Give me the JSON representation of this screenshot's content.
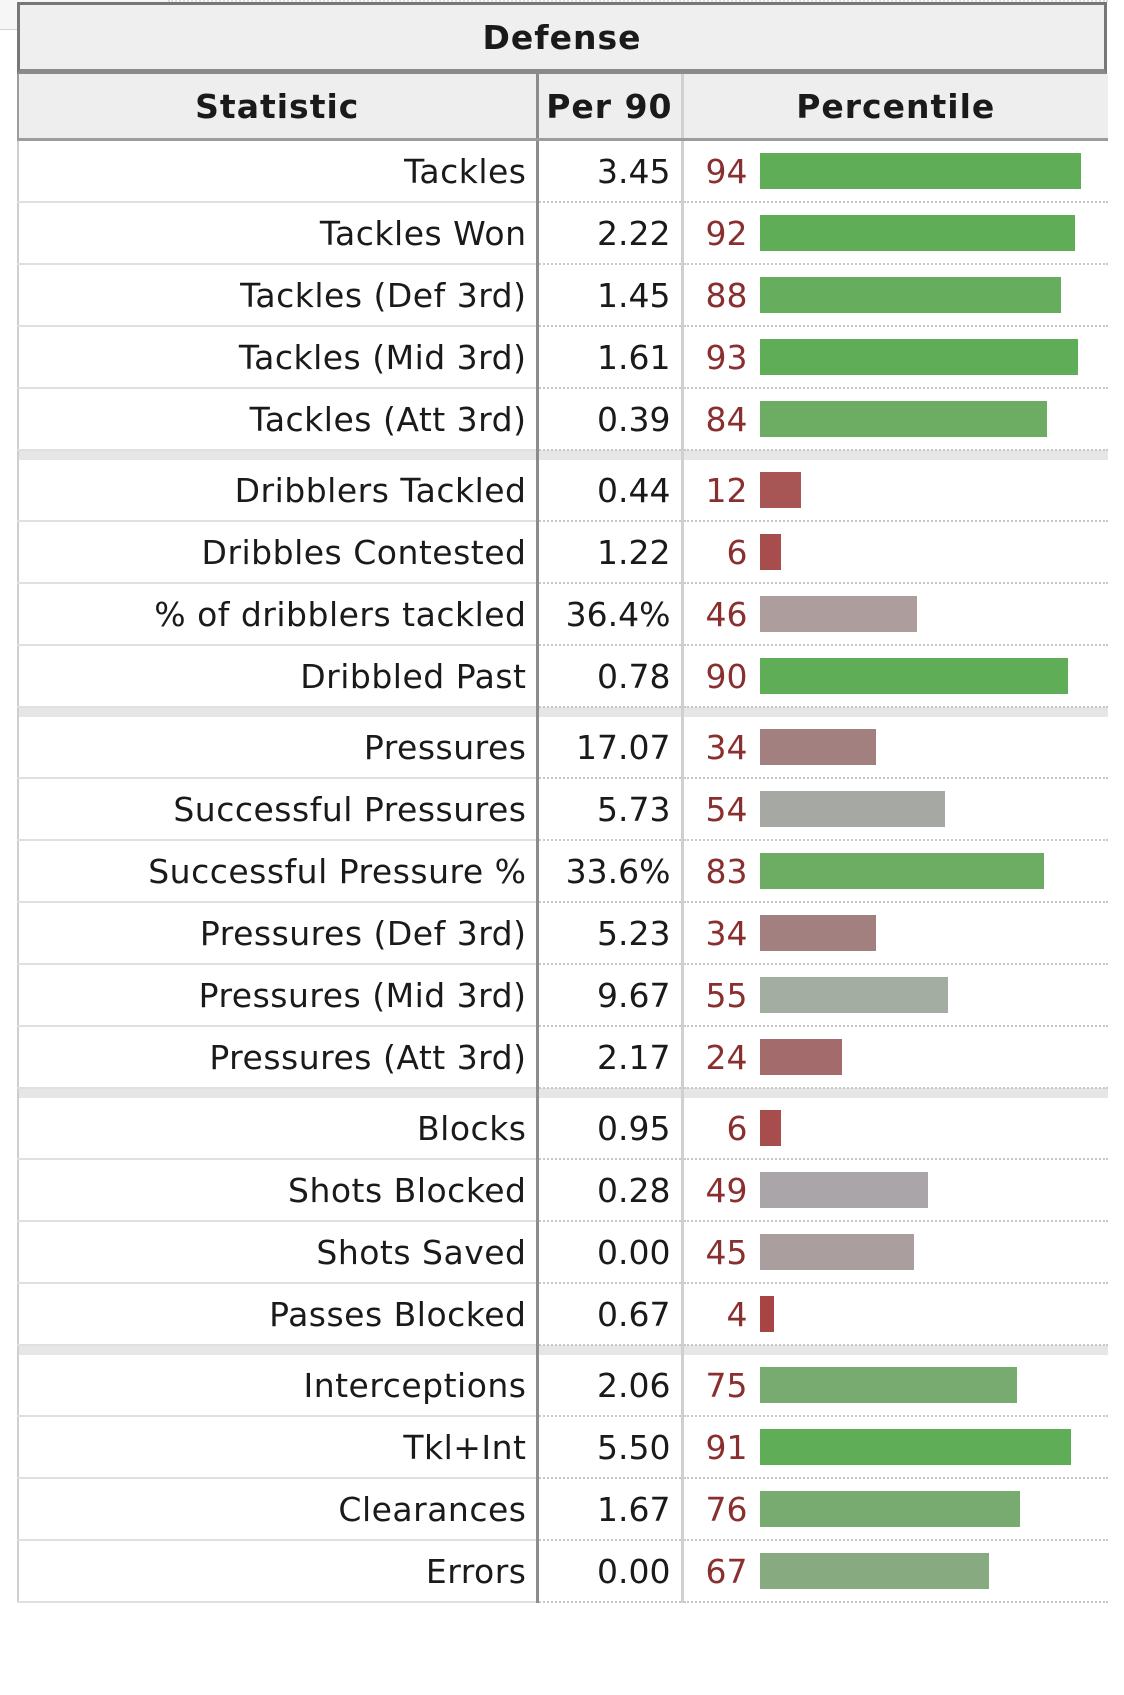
{
  "table": {
    "title": "Defense",
    "headers": {
      "statistic": "Statistic",
      "per90": "Per 90",
      "percentile": "Percentile"
    }
  },
  "chart_data": {
    "type": "bar",
    "title": "Defense",
    "xlabel": "Percentile",
    "xlim": [
      0,
      100
    ],
    "groups": [
      {
        "rows": [
          {
            "statistic": "Tackles",
            "per90": "3.45",
            "percentile": 94,
            "color": "#5fae57"
          },
          {
            "statistic": "Tackles Won",
            "per90": "2.22",
            "percentile": 92,
            "color": "#5fae57"
          },
          {
            "statistic": "Tackles (Def 3rd)",
            "per90": "1.45",
            "percentile": 88,
            "color": "#66ad5e"
          },
          {
            "statistic": "Tackles (Mid 3rd)",
            "per90": "1.61",
            "percentile": 93,
            "color": "#5fae57"
          },
          {
            "statistic": "Tackles (Att 3rd)",
            "per90": "0.39",
            "percentile": 84,
            "color": "#6cad63"
          }
        ]
      },
      {
        "rows": [
          {
            "statistic": "Dribblers Tackled",
            "per90": "0.44",
            "percentile": 12,
            "color": "#a75555"
          },
          {
            "statistic": "Dribbles Contested",
            "per90": "1.22",
            "percentile": 6,
            "color": "#a84d4d"
          },
          {
            "statistic": "% of dribblers tackled",
            "per90": "36.4%",
            "percentile": 46,
            "color": "#ad9d9d"
          },
          {
            "statistic": "Dribbled Past",
            "per90": "0.78",
            "percentile": 90,
            "color": "#5fae57"
          }
        ]
      },
      {
        "rows": [
          {
            "statistic": "Pressures",
            "per90": "17.07",
            "percentile": 34,
            "color": "#a38080"
          },
          {
            "statistic": "Successful Pressures",
            "per90": "5.73",
            "percentile": 54,
            "color": "#a5a8a3"
          },
          {
            "statistic": "Successful Pressure %",
            "per90": "33.6%",
            "percentile": 83,
            "color": "#6cad63"
          },
          {
            "statistic": "Pressures (Def 3rd)",
            "per90": "5.23",
            "percentile": 34,
            "color": "#a38080"
          },
          {
            "statistic": "Pressures (Mid 3rd)",
            "per90": "9.67",
            "percentile": 55,
            "color": "#a3ada1"
          },
          {
            "statistic": "Pressures (Att 3rd)",
            "per90": "2.17",
            "percentile": 24,
            "color": "#a36b6b"
          }
        ]
      },
      {
        "rows": [
          {
            "statistic": "Blocks",
            "per90": "0.95",
            "percentile": 6,
            "color": "#a84d4d"
          },
          {
            "statistic": "Shots Blocked",
            "per90": "0.28",
            "percentile": 49,
            "color": "#a9a5a9"
          },
          {
            "statistic": "Shots Saved",
            "per90": "0.00",
            "percentile": 45,
            "color": "#ab9e9e"
          },
          {
            "statistic": "Passes Blocked",
            "per90": "0.67",
            "percentile": 4,
            "color": "#a84444"
          }
        ]
      },
      {
        "rows": [
          {
            "statistic": "Interceptions",
            "per90": "2.06",
            "percentile": 75,
            "color": "#78ab70"
          },
          {
            "statistic": "Tkl+Int",
            "per90": "5.50",
            "percentile": 91,
            "color": "#5fae57"
          },
          {
            "statistic": "Clearances",
            "per90": "1.67",
            "percentile": 76,
            "color": "#78ab70"
          },
          {
            "statistic": "Errors",
            "per90": "0.00",
            "percentile": 67,
            "color": "#88aa80"
          }
        ]
      }
    ]
  }
}
